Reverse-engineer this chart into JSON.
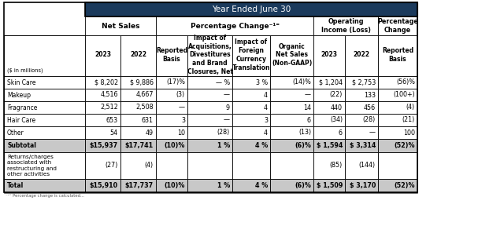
{
  "title": "Year Ended June 30",
  "header_bg": "#1b3a5c",
  "header_fg": "#ffffff",
  "bold_row_bg": "#c8c8c8",
  "normal_row_bg": "#ffffff",
  "col_group_labels": [
    "Net Sales",
    "Percentage Change⁻¹⁼",
    "Operating\nIncome (Loss)",
    "Percentage\nChange"
  ],
  "col_group_note": "Percentage Change⁻¹⁼",
  "sub_headers": [
    "2023",
    "2022",
    "Reported\nBasis",
    "Impact of\nAcquisitions,\nDivestitures\nand Brand\nClosures, Net",
    "Impact of\nForeign\nCurrency\nTranslation",
    "Organic\nNet Sales\n(Non-GAAP)",
    "2023",
    "2022",
    "Reported\nBasis"
  ],
  "millions_label": "($ in millions)",
  "rows": [
    {
      "label": "Skin Care",
      "values": [
        "$ 8,202",
        "$ 9,886",
        "(17)%",
        "— %",
        "3 %",
        "(14)%",
        "$ 1,204",
        "$ 2,753",
        "(56)%"
      ],
      "bold": false,
      "top_border": true
    },
    {
      "label": "Makeup",
      "values": [
        "4,516",
        "4,667",
        "(3)",
        "—",
        "4",
        "—",
        "(22)",
        "133",
        "(100+)"
      ],
      "bold": false,
      "top_border": false
    },
    {
      "label": "Fragrance",
      "values": [
        "2,512",
        "2,508",
        "—",
        "9",
        "4",
        "14",
        "440",
        "456",
        "(4)"
      ],
      "bold": false,
      "top_border": false
    },
    {
      "label": "Hair Care",
      "values": [
        "653",
        "631",
        "3",
        "—",
        "3",
        "6",
        "(34)",
        "(28)",
        "(21)"
      ],
      "bold": false,
      "top_border": false
    },
    {
      "label": "Other",
      "values": [
        "54",
        "49",
        "10",
        "(28)",
        "4",
        "(13)",
        "6",
        "—",
        "100"
      ],
      "bold": false,
      "top_border": false
    },
    {
      "label": "Subtotal",
      "values": [
        "$15,937",
        "$17,741",
        "(10)%",
        "1 %",
        "4 %",
        "(6)%",
        "$ 1,594",
        "$ 3,314",
        "(52)%"
      ],
      "bold": true,
      "top_border": true
    },
    {
      "label": "Returns/charges\nassociated with\nrestructuring and\nother activities",
      "values": [
        "(27)",
        "(4)",
        "",
        "",
        "",
        "",
        "(85)",
        "(144)",
        ""
      ],
      "bold": false,
      "top_border": false
    },
    {
      "label": "Total",
      "values": [
        "$15,910",
        "$17,737",
        "(10)%",
        "1 %",
        "4 %",
        "(6)%",
        "$ 1,509",
        "$ 3,170",
        "(52)%"
      ],
      "bold": true,
      "top_border": true
    }
  ]
}
